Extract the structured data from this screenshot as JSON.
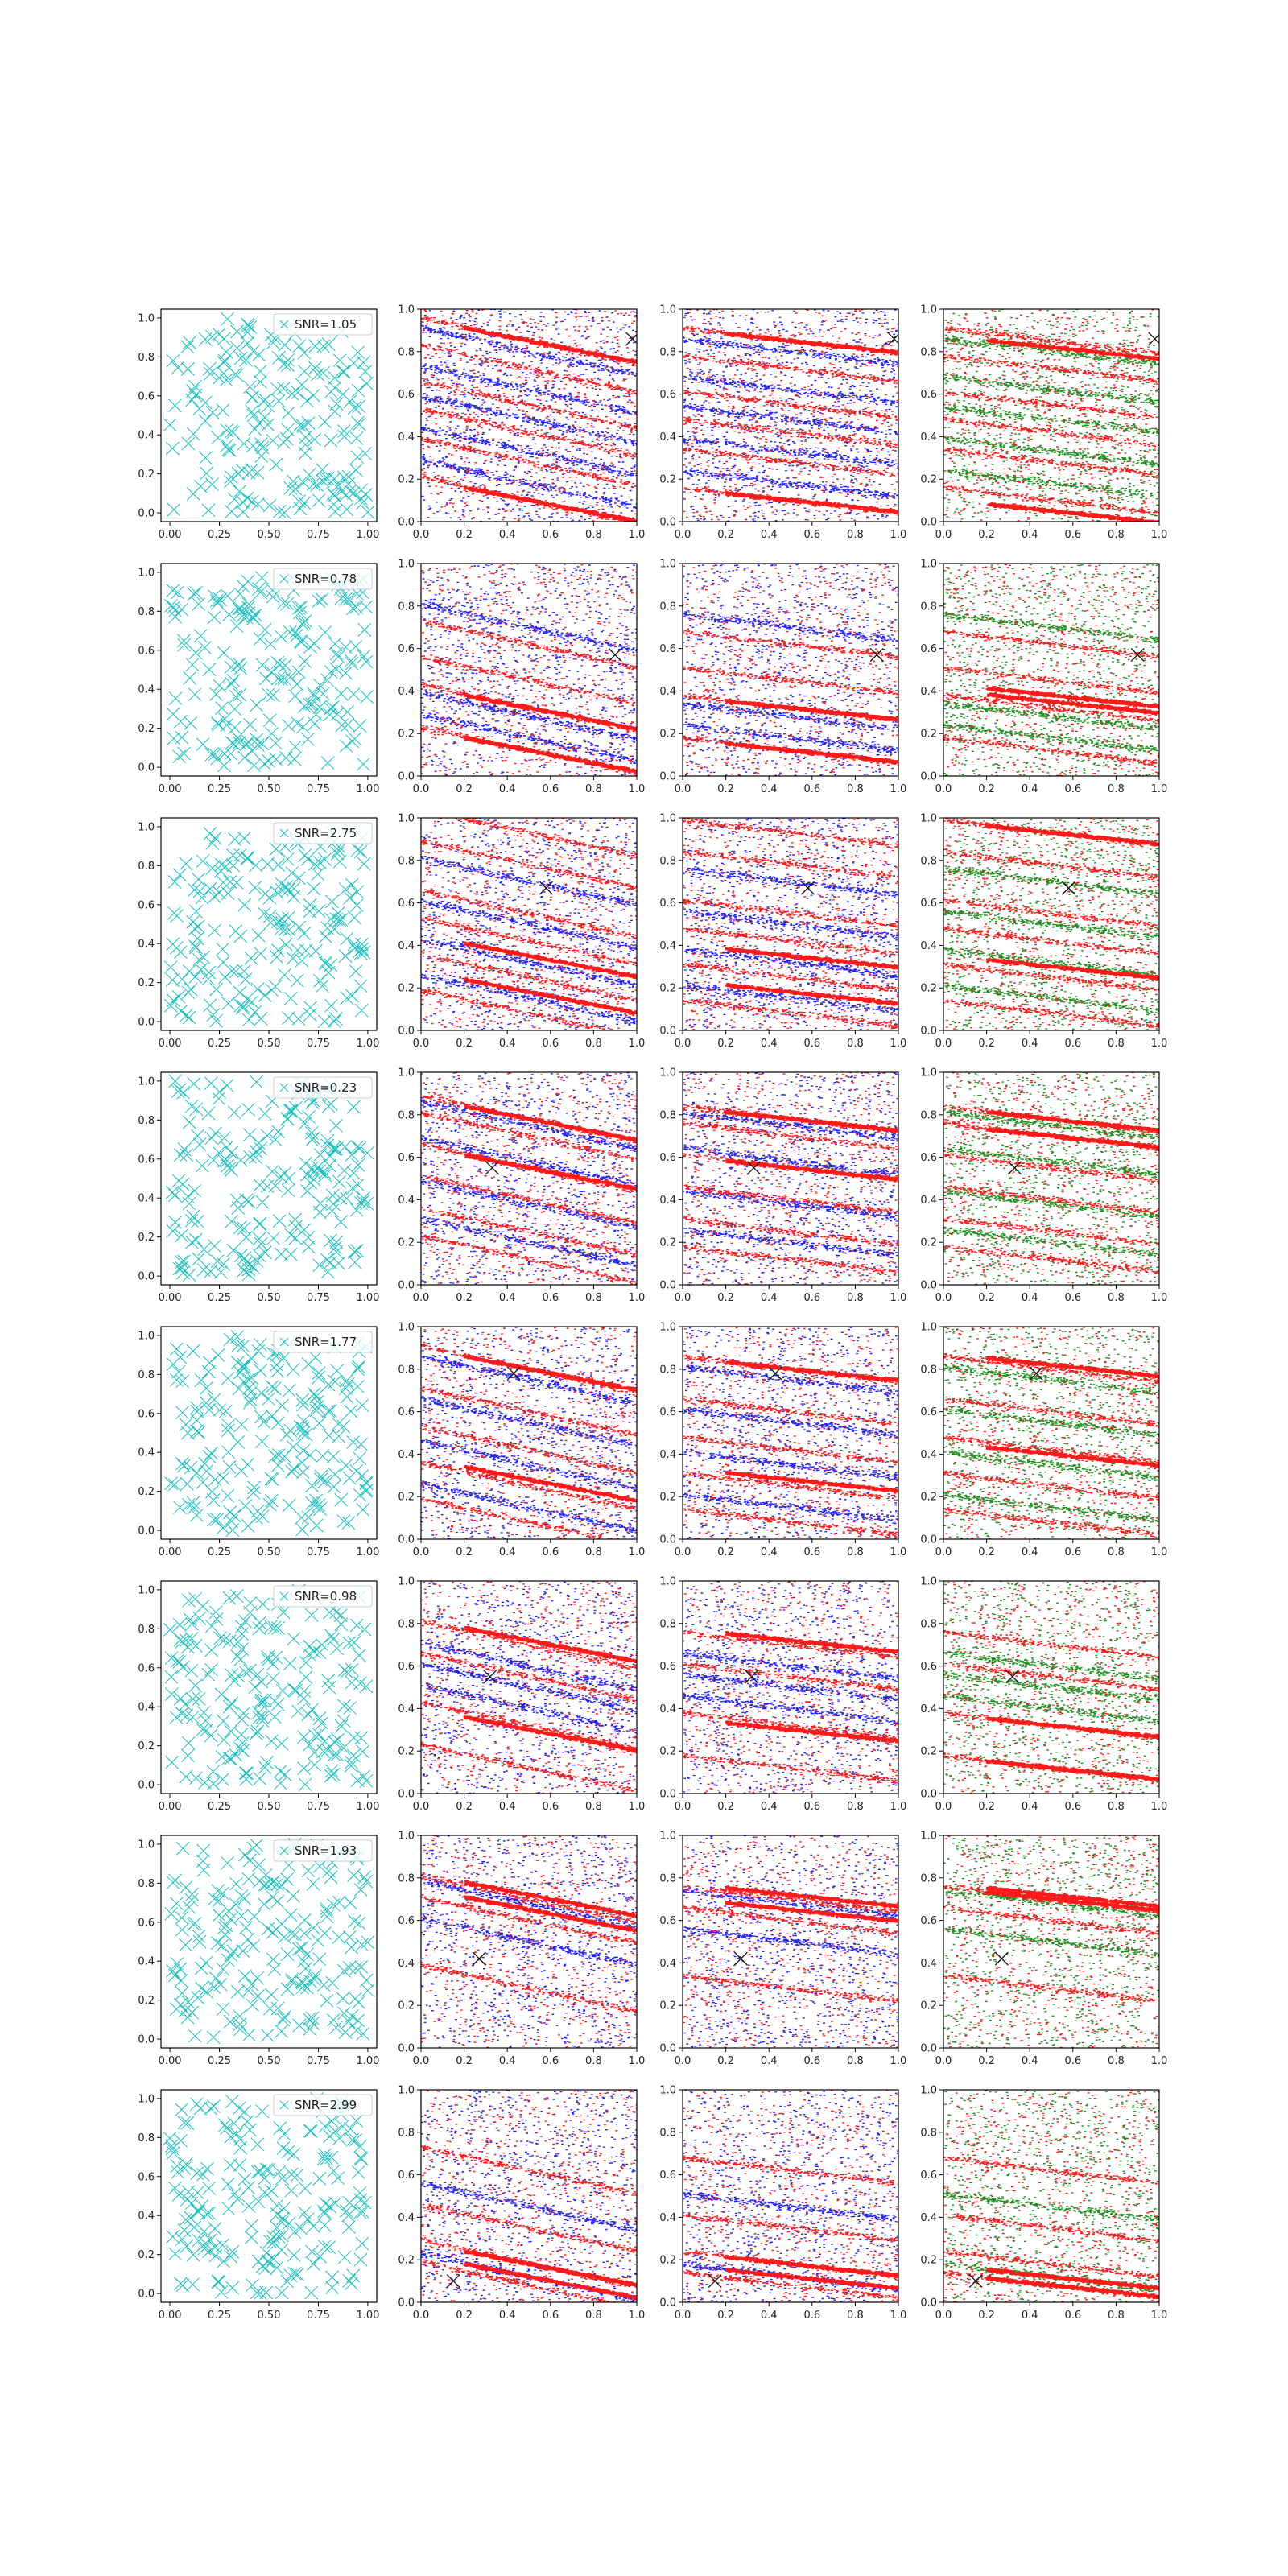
{
  "colors": {
    "cyan": "#17bfbf",
    "red": "#ff1a1a",
    "blue": "#2222ff",
    "green": "#1f8f1f",
    "marker": "#111111",
    "axes": "#000000"
  },
  "chart_data": {
    "type": "scatter",
    "rows": 8,
    "cols": 4,
    "xlim": [
      0,
      1
    ],
    "ylim": [
      0,
      1
    ],
    "tick_labels": {
      "col0_x": [
        "0.00",
        "0.25",
        "0.50",
        "0.75",
        "1.00"
      ],
      "col0_y": [
        "0.0",
        "0.2",
        "0.4",
        "0.6",
        "0.8",
        "1.0"
      ],
      "other_x": [
        "0.0",
        "0.2",
        "0.4",
        "0.6",
        "0.8",
        "1.0"
      ],
      "other_y": [
        "0.0",
        "0.2",
        "0.4",
        "0.6",
        "0.8",
        "1.0"
      ]
    },
    "column_colors": [
      [
        "cyan"
      ],
      [
        "red",
        "blue"
      ],
      [
        "red",
        "blue"
      ],
      [
        "red",
        "green"
      ]
    ],
    "rows_data": [
      {
        "snr": "SNR=1.05",
        "marker": [
          0.98,
          0.86
        ],
        "bands_red": [
          0.85,
          0.72,
          0.55,
          0.42,
          0.28,
          0.1
        ],
        "bands_blue": [
          0.8,
          0.62,
          0.48,
          0.33,
          0.18
        ],
        "dense_red_col1": [
          0.85,
          0.1
        ],
        "dense_red_col3": [
          0.82,
          0.05
        ]
      },
      {
        "snr": "SNR=0.78",
        "marker": [
          0.9,
          0.57
        ],
        "bands_red": [
          0.62,
          0.45,
          0.32,
          0.12
        ],
        "bands_blue": [
          0.7,
          0.28,
          0.18
        ],
        "dense_red_col1": [
          0.32,
          0.12
        ],
        "dense_red_col3": [
          0.35,
          0.38
        ]
      },
      {
        "snr": "SNR=2.75",
        "marker": [
          0.58,
          0.67
        ],
        "bands_red": [
          0.93,
          0.78,
          0.55,
          0.42,
          0.25,
          0.08
        ],
        "bands_blue": [
          0.7,
          0.5,
          0.32,
          0.15
        ],
        "dense_red_col1": [
          0.35,
          0.18
        ],
        "dense_red_col3": [
          0.93,
          0.3
        ]
      },
      {
        "snr": "SNR=0.23",
        "marker": [
          0.33,
          0.55
        ],
        "bands_red": [
          0.78,
          0.7,
          0.55,
          0.4,
          0.25,
          0.12
        ],
        "bands_blue": [
          0.75,
          0.58,
          0.38,
          0.2
        ],
        "dense_red_col1": [
          0.78,
          0.55
        ],
        "dense_red_col3": [
          0.78,
          0.7
        ]
      },
      {
        "snr": "SNR=1.77",
        "marker": [
          0.43,
          0.78
        ],
        "bands_red": [
          0.8,
          0.6,
          0.42,
          0.25,
          0.08
        ],
        "bands_blue": [
          0.75,
          0.55,
          0.35,
          0.15
        ],
        "dense_red_col1": [
          0.8,
          0.28
        ],
        "dense_red_col3": [
          0.82,
          0.4
        ]
      },
      {
        "snr": "SNR=0.98",
        "marker": [
          0.32,
          0.55
        ],
        "bands_red": [
          0.7,
          0.55,
          0.32,
          0.12
        ],
        "bands_blue": [
          0.6,
          0.5,
          0.4
        ],
        "dense_red_col1": [
          0.72,
          0.3
        ],
        "dense_red_col3": [
          0.32,
          0.12
        ]
      },
      {
        "snr": "SNR=1.93",
        "marker": [
          0.27,
          0.42
        ],
        "bands_red": [
          0.7,
          0.6,
          0.28
        ],
        "bands_blue": [
          0.68,
          0.5
        ],
        "dense_red_col1": [
          0.72,
          0.65
        ],
        "dense_red_col3": [
          0.72,
          0.7
        ]
      },
      {
        "snr": "SNR=2.99",
        "marker": [
          0.15,
          0.1
        ],
        "bands_red": [
          0.62,
          0.35,
          0.18,
          0.08
        ],
        "bands_blue": [
          0.45,
          0.12
        ],
        "dense_red_col1": [
          0.12,
          0.18
        ],
        "dense_red_col3": [
          0.12,
          0.08
        ]
      }
    ]
  }
}
